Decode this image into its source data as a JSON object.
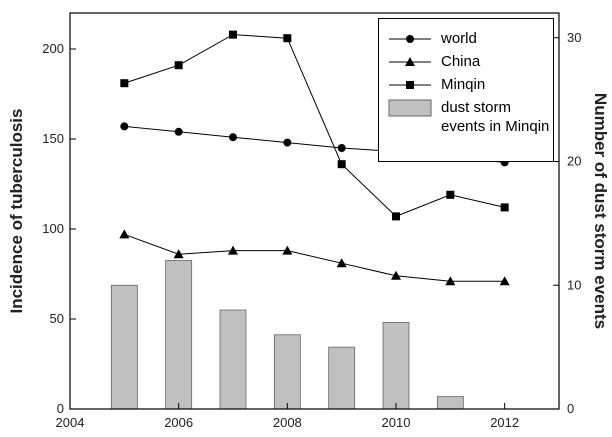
{
  "chart_data": {
    "type": "line",
    "ylabel": "Incidence of tuberculosis",
    "y2label": "Number of dust storm events",
    "x": [
      2005,
      2006,
      2007,
      2008,
      2009,
      2010,
      2011,
      2012
    ],
    "xlim": [
      2004,
      2013
    ],
    "xticks": [
      2004,
      2006,
      2008,
      2010,
      2012
    ],
    "ylim": [
      0,
      220
    ],
    "yticks": [
      0,
      50,
      100,
      150,
      200
    ],
    "y2lim": [
      0,
      32
    ],
    "y2ticks": [
      0,
      10,
      20,
      30
    ],
    "legend": "upper right",
    "series": [
      {
        "name": "world",
        "color": "#000000",
        "marker": "circle",
        "values": [
          157,
          154,
          151,
          148,
          145,
          143,
          140,
          137
        ]
      },
      {
        "name": "China",
        "color": "#000000",
        "marker": "triangle",
        "values": [
          97,
          86,
          88,
          88,
          81,
          74,
          71,
          71
        ]
      },
      {
        "name": "Minqin",
        "color": "#000000",
        "marker": "square",
        "values": [
          181,
          191,
          208,
          206,
          136,
          107,
          119,
          112
        ]
      },
      {
        "name": "dust storm events in Minqin",
        "color": "#c0c0c0",
        "type": "bar",
        "axis": "y2",
        "values": [
          10,
          12,
          8,
          6,
          5,
          7,
          1,
          0
        ]
      }
    ]
  }
}
